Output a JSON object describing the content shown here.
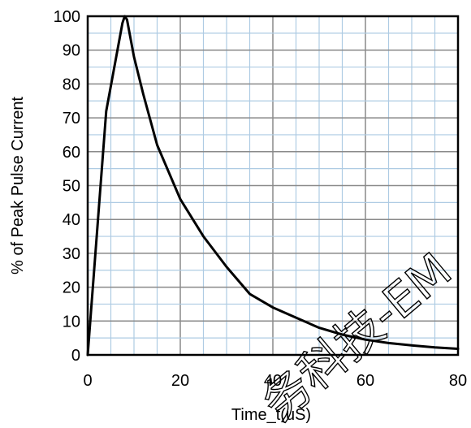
{
  "chart_data": {
    "type": "line",
    "title": "",
    "xlabel": "Time_t(uS)",
    "ylabel": "% of Peak Pulse Current",
    "xlim": [
      0,
      80
    ],
    "ylim": [
      0,
      100
    ],
    "x_ticks": [
      0,
      20,
      40,
      60,
      80
    ],
    "x_tick_labels": [
      "0",
      "20",
      "40",
      "60",
      "80"
    ],
    "y_ticks": [
      0,
      10,
      20,
      30,
      40,
      50,
      60,
      70,
      80,
      90,
      100
    ],
    "y_tick_labels": [
      "0",
      "10",
      "20",
      "30",
      "40",
      "50",
      "60",
      "70",
      "80",
      "90",
      "100"
    ],
    "x_minor_grid_step": 5,
    "y_minor_grid_step": 5,
    "grid": true,
    "legend": "none",
    "colors": {
      "major_grid": "#8a8a8a",
      "minor_grid": "#aecbe3",
      "line": "#000000",
      "frame": "#000000"
    },
    "series": [
      {
        "x": [
          0,
          4,
          7.5,
          8,
          8.5,
          10,
          12,
          15,
          20,
          25,
          30,
          35,
          40,
          45,
          50,
          55,
          60,
          65,
          70,
          75,
          80
        ],
        "values": [
          0,
          72,
          98,
          100,
          99,
          88,
          77,
          62,
          46,
          35,
          26,
          18,
          14,
          11,
          8,
          6,
          4.5,
          3.5,
          2.8,
          2.2,
          1.8
        ]
      }
    ]
  },
  "watermark": {
    "text": "务科技-EM"
  }
}
